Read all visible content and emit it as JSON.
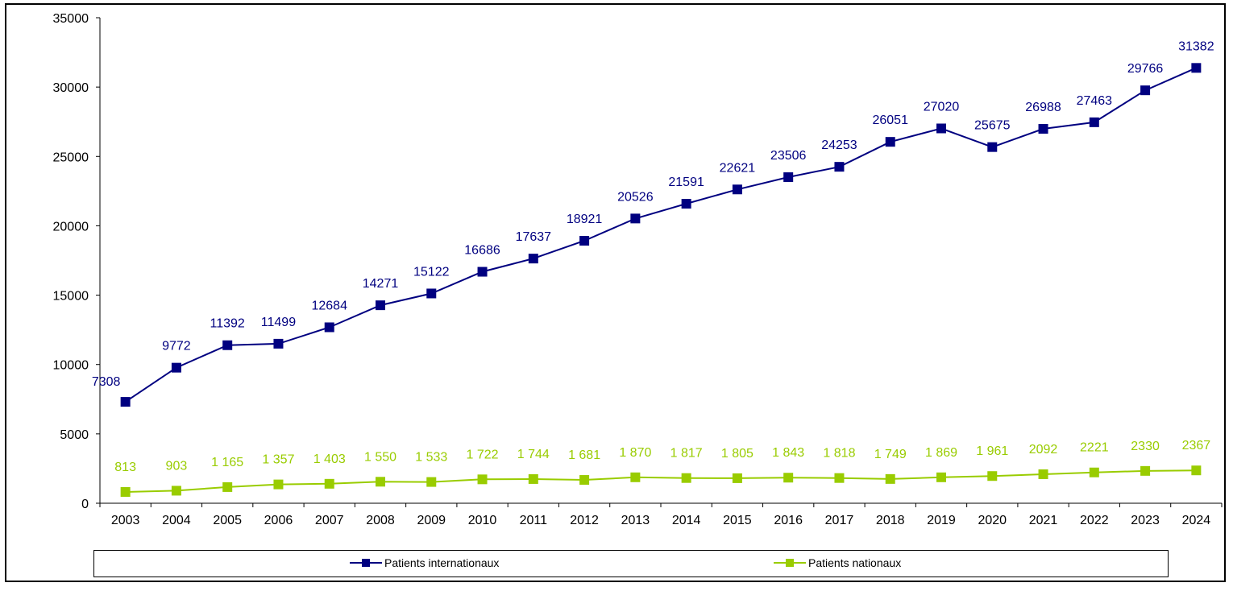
{
  "chart_data": {
    "type": "line",
    "title": "",
    "xlabel": "",
    "ylabel": "",
    "ylim": [
      0,
      35000
    ],
    "y_ticks": [
      "0",
      "5000",
      "10000",
      "15000",
      "20000",
      "25000",
      "30000",
      "35000"
    ],
    "y_tick_values": [
      0,
      5000,
      10000,
      15000,
      20000,
      25000,
      30000,
      35000
    ],
    "grid": false,
    "legend_position": "bottom",
    "categories": [
      "2003",
      "2004",
      "2005",
      "2006",
      "2007",
      "2008",
      "2009",
      "2010",
      "2011",
      "2012",
      "2013",
      "2014",
      "2015",
      "2016",
      "2017",
      "2018",
      "2019",
      "2020",
      "2021",
      "2022",
      "2023",
      "2024"
    ],
    "series": [
      {
        "name": "Patients internationaux",
        "color": "#000080",
        "marker": "square",
        "values": [
          7308,
          9772,
          11392,
          11499,
          12684,
          14271,
          15122,
          16686,
          17637,
          18921,
          20526,
          21591,
          22621,
          23506,
          24253,
          26051,
          27020,
          25675,
          26988,
          27463,
          29766,
          31382
        ],
        "labels": [
          "7308",
          "9772",
          "11392",
          "11499",
          "12684",
          "14271",
          "15122",
          "16686",
          "17637",
          "18921",
          "20526",
          "21591",
          "22621",
          "23506",
          "24253",
          "26051",
          "27020",
          "25675",
          "26988",
          "27463",
          "29766",
          "31382"
        ]
      },
      {
        "name": "Patients nationaux",
        "color": "#99CC00",
        "marker": "square",
        "values": [
          813,
          903,
          1165,
          1357,
          1403,
          1550,
          1533,
          1722,
          1744,
          1681,
          1870,
          1817,
          1805,
          1843,
          1818,
          1749,
          1869,
          1961,
          2092,
          2221,
          2330,
          2367
        ],
        "labels": [
          "813",
          "903",
          "1 165",
          "1 357",
          "1 403",
          "1 550",
          "1 533",
          "1 722",
          "1 744",
          "1 681",
          "1 870",
          "1 817",
          "1 805",
          "1 843",
          "1 818",
          "1 749",
          "1 869",
          "1 961",
          "2092",
          "2221",
          "2330",
          "2367"
        ]
      }
    ]
  },
  "legend": {
    "items": [
      {
        "label": "Patients internationaux",
        "color": "#000080"
      },
      {
        "label": "Patients nationaux",
        "color": "#99CC00"
      }
    ]
  }
}
